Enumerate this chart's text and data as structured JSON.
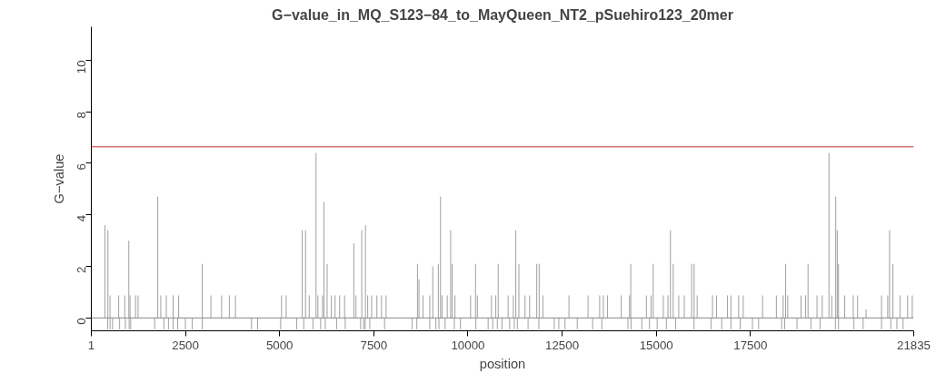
{
  "chart_data": {
    "type": "bar",
    "title": "G−value_in_MQ_S123−84_to_MayQueen_NT2_pSuehiro123_20mer",
    "xlabel": "position",
    "ylabel": "G−value",
    "xlim": [
      1,
      21835
    ],
    "ylim": [
      -0.5,
      11.3
    ],
    "xticks": [
      1,
      2500,
      5000,
      7500,
      10000,
      12500,
      15000,
      17500,
      21835
    ],
    "yticks": [
      0,
      2,
      4,
      6,
      8,
      10
    ],
    "grid": false,
    "ref_lines": [
      {
        "axis": "y",
        "value": 0,
        "color": "#888888"
      },
      {
        "axis": "y",
        "value": 6.64,
        "color": "#c43030"
      }
    ],
    "series": [
      {
        "color": "#808080",
        "x": [
          360,
          441,
          498,
          727,
          889,
          996,
          1029,
          1176,
          1242,
          1764,
          1845,
          1992,
          2172,
          2319,
          2946,
          3176,
          3460,
          3665,
          3827,
          5051,
          5174,
          5599,
          5688,
          5786,
          5967,
          6016,
          6138,
          6177,
          6261,
          6373,
          6471,
          6593,
          6725,
          6970,
          7026,
          7181,
          7279,
          7338,
          7443,
          7582,
          7705,
          7827,
          8660,
          8700,
          8807,
          8986,
          9067,
          9214,
          9271,
          9312,
          9451,
          9540,
          9581,
          9654,
          10070,
          10201,
          10250,
          10625,
          10739,
          10803,
          11066,
          11205,
          11270,
          11352,
          11515,
          11637,
          11826,
          11891,
          11989,
          12682,
          13188,
          13497,
          13595,
          13703,
          14070,
          14290,
          14322,
          14738,
          14861,
          14918,
          15187,
          15310,
          15376,
          15449,
          15596,
          15743,
          15939,
          16004,
          16085,
          16493,
          16599,
          16890,
          16982,
          17186,
          17308,
          17822,
          18189,
          18368,
          18434,
          18490,
          18843,
          18965,
          19029,
          19267,
          19406,
          19585,
          19658,
          19764,
          19805,
          19838,
          20002,
          20229,
          20344,
          20570,
          20980,
          21144,
          21193,
          21282,
          21470,
          21673,
          21796
        ],
        "values": [
          3.6,
          3.4,
          0.87,
          0.87,
          0.87,
          3.0,
          0.87,
          0.87,
          0.87,
          4.7,
          0.87,
          0.87,
          0.87,
          0.87,
          2.1,
          0.87,
          0.87,
          0.87,
          0.87,
          0.87,
          0.87,
          3.4,
          3.4,
          0.87,
          6.4,
          0.87,
          0.87,
          4.5,
          2.1,
          0.87,
          0.87,
          0.87,
          0.87,
          2.9,
          0.87,
          3.4,
          3.6,
          0.87,
          0.87,
          0.87,
          0.87,
          0.87,
          2.1,
          1.5,
          0.87,
          0.87,
          2.0,
          2.1,
          4.7,
          0.87,
          0.87,
          3.4,
          2.1,
          0.87,
          0.87,
          2.1,
          0.87,
          0.87,
          0.87,
          2.1,
          0.87,
          0.87,
          3.4,
          2.1,
          0.87,
          0.87,
          2.1,
          2.1,
          0.87,
          0.87,
          0.87,
          0.87,
          0.87,
          0.87,
          0.87,
          0.87,
          2.1,
          0.87,
          0.87,
          2.1,
          0.87,
          0.87,
          3.4,
          2.1,
          0.87,
          0.87,
          2.1,
          2.1,
          0.87,
          0.87,
          0.87,
          0.87,
          0.87,
          0.87,
          0.87,
          0.87,
          0.87,
          0.87,
          2.1,
          0.87,
          0.87,
          0.87,
          2.1,
          0.87,
          0.87,
          6.4,
          0.87,
          4.7,
          3.4,
          2.1,
          0.87,
          0.87,
          0.87,
          0.34,
          0.87,
          0.87,
          3.4,
          2.1,
          0.87,
          0.87,
          0.87
        ]
      },
      {
        "color": "#808080",
        "x": [
          434,
          499,
          564,
          752,
          907,
          1005,
          1046,
          1682,
          1927,
          2049,
          2172,
          2294,
          2498,
          2678,
          2947,
          4253,
          4416,
          5028,
          5452,
          5640,
          5885,
          6089,
          6211,
          6513,
          6741,
          7149,
          7231,
          7272,
          7394,
          7786,
          8520,
          8643,
          8985,
          9149,
          9230,
          9393,
          9638,
          9801,
          10209,
          10536,
          10658,
          10780,
          10903,
          11107,
          11229,
          11311,
          11596,
          11882,
          12290,
          12412,
          12576,
          12902,
          13310,
          13555,
          14248,
          14330,
          14616,
          14820,
          15024,
          15268,
          15513,
          16002,
          16452,
          16737,
          16982,
          17227,
          17553,
          17716,
          18328,
          18410,
          18736,
          19104,
          19348,
          19756,
          19838,
          20246,
          20491,
          20980,
          21225,
          21388,
          21551
        ],
        "values": [
          -0.45,
          -0.45,
          -0.45,
          -0.45,
          -0.45,
          -0.45,
          -0.45,
          -0.45,
          -0.45,
          -0.45,
          -0.45,
          -0.45,
          -0.45,
          -0.45,
          -0.45,
          -0.45,
          -0.45,
          -0.45,
          -0.45,
          -0.45,
          -0.45,
          -0.45,
          -0.45,
          -0.45,
          -0.45,
          -0.45,
          -0.45,
          -0.45,
          -0.45,
          -0.45,
          -0.45,
          -0.45,
          -0.45,
          -0.45,
          -0.45,
          -0.45,
          -0.45,
          -0.45,
          -0.45,
          -0.45,
          -0.45,
          -0.45,
          -0.45,
          -0.45,
          -0.45,
          -0.45,
          -0.45,
          -0.45,
          -0.45,
          -0.45,
          -0.45,
          -0.45,
          -0.45,
          -0.45,
          -0.45,
          -0.45,
          -0.45,
          -0.45,
          -0.45,
          -0.45,
          -0.45,
          -0.45,
          -0.45,
          -0.45,
          -0.45,
          -0.45,
          -0.45,
          -0.45,
          -0.45,
          -0.45,
          -0.45,
          -0.45,
          -0.45,
          -0.45,
          -0.45,
          -0.45,
          -0.45,
          -0.45,
          -0.45,
          -0.45,
          -0.45
        ]
      }
    ]
  }
}
